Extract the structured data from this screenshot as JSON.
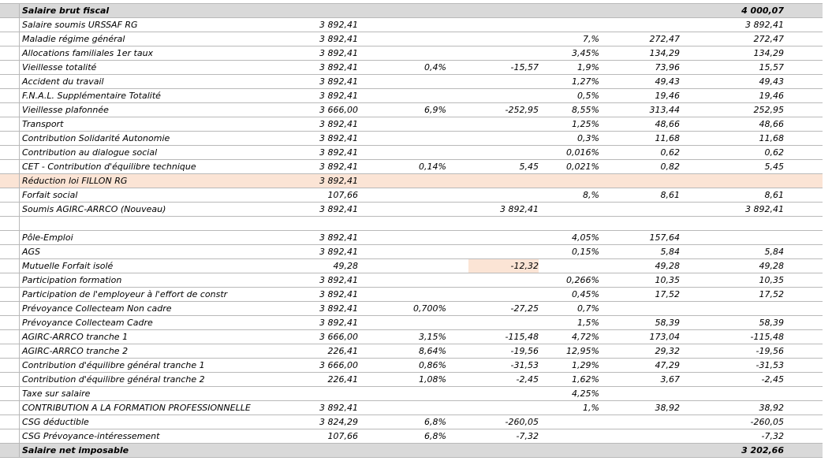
{
  "rows": [
    {
      "label": "Salaire brut fiscal",
      "base": "",
      "rate1": "",
      "amt1": "",
      "rate2": "",
      "amt2": "",
      "total": "4 000,07",
      "type": "header"
    },
    {
      "label": "Salaire soumis URSSAF RG",
      "base": "3 892,41",
      "rate1": "",
      "amt1": "",
      "rate2": "",
      "amt2": "",
      "total": "3 892,41",
      "type": "normal"
    },
    {
      "label": "Maladie régime général",
      "base": "3 892,41",
      "rate1": "",
      "amt1": "",
      "rate2": "7,%",
      "amt2": "272,47",
      "total": "272,47",
      "type": "normal"
    },
    {
      "label": "Allocations familiales 1er taux",
      "base": "3 892,41",
      "rate1": "",
      "amt1": "",
      "rate2": "3,45%",
      "amt2": "134,29",
      "total": "134,29",
      "type": "normal"
    },
    {
      "label": "Vieillesse totalité",
      "base": "3 892,41",
      "rate1": "0,4%",
      "amt1": "-15,57",
      "rate2": "1,9%",
      "amt2": "73,96",
      "total": "15,57",
      "type": "normal"
    },
    {
      "label": "Accident du travail",
      "base": "3 892,41",
      "rate1": "",
      "amt1": "",
      "rate2": "1,27%",
      "amt2": "49,43",
      "total": "49,43",
      "type": "normal"
    },
    {
      "label": "F.N.A.L. Supplémentaire Totalité",
      "base": "3 892,41",
      "rate1": "",
      "amt1": "",
      "rate2": "0,5%",
      "amt2": "19,46",
      "total": "19,46",
      "type": "normal"
    },
    {
      "label": "Vieillesse plafonnée",
      "base": "3 666,00",
      "rate1": "6,9%",
      "amt1": "-252,95",
      "rate2": "8,55%",
      "amt2": "313,44",
      "total": "252,95",
      "type": "normal"
    },
    {
      "label": "Transport",
      "base": "3 892,41",
      "rate1": "",
      "amt1": "",
      "rate2": "1,25%",
      "amt2": "48,66",
      "total": "48,66",
      "type": "normal"
    },
    {
      "label": "Contribution Solidarité Autonomie",
      "base": "3 892,41",
      "rate1": "",
      "amt1": "",
      "rate2": "0,3%",
      "amt2": "11,68",
      "total": "11,68",
      "type": "normal"
    },
    {
      "label": "Contribution au dialogue social",
      "base": "3 892,41",
      "rate1": "",
      "amt1": "",
      "rate2": "0,016%",
      "amt2": "0,62",
      "total": "0,62",
      "type": "normal"
    },
    {
      "label": "CET - Contribution d'équilibre technique",
      "base": "3 892,41",
      "rate1": "0,14%",
      "amt1": "5,45",
      "rate2": "0,021%",
      "amt2": "0,82",
      "total": "5,45",
      "type": "normal"
    },
    {
      "label": "Réduction loi FILLON RG",
      "base": "3 892,41",
      "rate1": "",
      "amt1": "",
      "rate2": "",
      "amt2": "",
      "total": "",
      "type": "hl"
    },
    {
      "label": "Forfait social",
      "base": "107,66",
      "rate1": "",
      "amt1": "",
      "rate2": "8,%",
      "amt2": "8,61",
      "total": "8,61",
      "type": "normal"
    },
    {
      "label": "Soumis AGIRC-ARRCO (Nouveau)",
      "base": "3 892,41",
      "rate1": "",
      "amt1": "3 892,41",
      "rate2": "",
      "amt2": "",
      "total": "3 892,41",
      "type": "normal"
    },
    {
      "label": "",
      "base": "",
      "rate1": "",
      "amt1": "",
      "rate2": "",
      "amt2": "",
      "total": "",
      "type": "blank"
    },
    {
      "label": "Pôle-Emploi",
      "base": "3 892,41",
      "rate1": "",
      "amt1": "",
      "rate2": "4,05%",
      "amt2": "157,64",
      "total": "",
      "type": "normal"
    },
    {
      "label": "AGS",
      "base": "3 892,41",
      "rate1": "",
      "amt1": "",
      "rate2": "0,15%",
      "amt2": "5,84",
      "total": "5,84",
      "type": "normal"
    },
    {
      "label": "Mutuelle Forfait isolé",
      "base": "49,28",
      "rate1": "",
      "amt1": "-12,32",
      "rate2": "",
      "amt2": "49,28",
      "total": "49,28",
      "type": "shadeamt"
    },
    {
      "label": "Participation formation",
      "base": "3 892,41",
      "rate1": "",
      "amt1": "",
      "rate2": "0,266%",
      "amt2": "10,35",
      "total": "10,35",
      "type": "normal"
    },
    {
      "label": "Participation de l'employeur à l'effort de constr",
      "base": "3 892,41",
      "rate1": "",
      "amt1": "",
      "rate2": "0,45%",
      "amt2": "17,52",
      "total": "17,52",
      "type": "normal"
    },
    {
      "label": "Prévoyance Collecteam Non cadre",
      "base": "3 892,41",
      "rate1": "0,700%",
      "amt1": "-27,25",
      "rate2": "0,7%",
      "amt2": "",
      "total": "",
      "type": "normal"
    },
    {
      "label": "Prévoyance Collecteam Cadre",
      "base": "3 892,41",
      "rate1": "",
      "amt1": "",
      "rate2": "1,5%",
      "amt2": "58,39",
      "total": "58,39",
      "type": "normal"
    },
    {
      "label": "AGIRC-ARRCO tranche 1",
      "base": "3 666,00",
      "rate1": "3,15%",
      "amt1": "-115,48",
      "rate2": "4,72%",
      "amt2": "173,04",
      "total": "-115,48",
      "type": "normal"
    },
    {
      "label": "AGIRC-ARRCO tranche 2",
      "base": "226,41",
      "rate1": "8,64%",
      "amt1": "-19,56",
      "rate2": "12,95%",
      "amt2": "29,32",
      "total": "-19,56",
      "type": "normal"
    },
    {
      "label": "Contribution d'équilibre général tranche 1",
      "base": "3 666,00",
      "rate1": "0,86%",
      "amt1": "-31,53",
      "rate2": "1,29%",
      "amt2": "47,29",
      "total": "-31,53",
      "type": "normal"
    },
    {
      "label": "Contribution d'équilibre général tranche 2",
      "base": "226,41",
      "rate1": "1,08%",
      "amt1": "-2,45",
      "rate2": "1,62%",
      "amt2": "3,67",
      "total": "-2,45",
      "type": "normal"
    },
    {
      "label": "Taxe sur salaire",
      "base": "",
      "rate1": "",
      "amt1": "",
      "rate2": "4,25%",
      "amt2": "",
      "total": "",
      "type": "normal"
    },
    {
      "label": "CONTRIBUTION A LA FORMATION PROFESSIONNELLE",
      "base": "3 892,41",
      "rate1": "",
      "amt1": "",
      "rate2": "1,%",
      "amt2": "38,92",
      "total": "38,92",
      "type": "normal"
    },
    {
      "label": "CSG déductible",
      "base": "3 824,29",
      "rate1": "6,8%",
      "amt1": "-260,05",
      "rate2": "",
      "amt2": "",
      "total": "-260,05",
      "type": "normal"
    },
    {
      "label": "CSG Prévoyance-intéressement",
      "base": "107,66",
      "rate1": "6,8%",
      "amt1": "-7,32",
      "rate2": "",
      "amt2": "",
      "total": "-7,32",
      "type": "normal"
    },
    {
      "label": "Salaire net imposable",
      "base": "",
      "rate1": "",
      "amt1": "",
      "rate2": "",
      "amt2": "",
      "total": "3 202,66",
      "type": "header"
    }
  ]
}
